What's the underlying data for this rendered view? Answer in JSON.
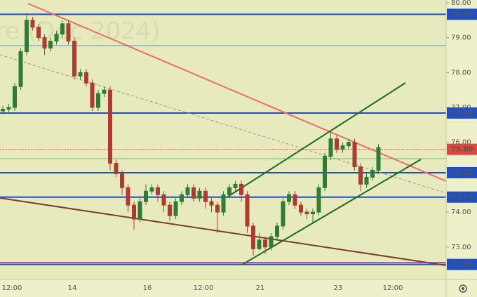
{
  "chart_data": {
    "type": "candlestick",
    "watermark": "re (Dec 2024)",
    "up_color": "#2e7d32",
    "down_color": "#b03a2e",
    "ylim": [
      72.07,
      80.08
    ],
    "yticks": [
      {
        "value": 73,
        "label": "73.00"
      },
      {
        "value": 74,
        "label": "74.00"
      },
      {
        "value": 76,
        "label": "76.00"
      },
      {
        "value": 77,
        "label": "77.00"
      },
      {
        "value": 78,
        "label": "78.00"
      },
      {
        "value": 79,
        "label": "79.00"
      },
      {
        "value": 80,
        "label": "80.00"
      }
    ],
    "x_labels": [
      "12:00",
      "14",
      "16",
      "12:00",
      "21",
      "23",
      "12:00"
    ],
    "levels": [
      {
        "value": 79.67,
        "label": "79.67",
        "color": "#1f4fc6"
      },
      {
        "value": 76.84,
        "label": "76.84",
        "color": "#1f4fc6"
      },
      {
        "value": 75.8,
        "label": "75.80",
        "color": "#e0463c"
      },
      {
        "value": 75.13,
        "label": "75.13",
        "color": "#1f4fc6"
      },
      {
        "value": 74.43,
        "label": "74.43",
        "color": "#1f4fc6"
      },
      {
        "value": 72.5,
        "label": "72.50",
        "color": "#1f4fc6"
      }
    ],
    "series": [
      {
        "open": [
          76.9,
          76.95,
          77.0,
          77.6,
          78.6,
          79.5,
          79.3,
          79.0,
          78.7,
          78.9,
          79.1,
          79.4,
          78.9,
          77.9,
          78.0,
          77.7,
          77.0,
          77.4,
          77.5,
          75.4,
          75.1,
          74.7,
          74.2,
          73.8,
          74.3,
          74.6,
          74.7,
          74.5,
          74.2,
          73.9,
          74.3,
          74.5,
          74.7,
          74.4,
          74.6,
          74.3,
          74.2,
          74.0,
          74.5,
          74.7,
          74.8,
          74.5,
          73.6,
          72.95,
          73.2,
          73.0,
          73.3,
          73.6,
          74.3,
          74.5,
          74.2,
          74.0,
          73.95,
          74.0,
          74.7,
          75.6,
          76.1,
          75.8,
          75.9,
          76.0,
          75.3,
          74.8,
          75.0,
          75.2
        ],
        "high": [
          77.05,
          77.1,
          77.7,
          78.7,
          79.7,
          79.6,
          79.4,
          79.1,
          79.0,
          79.2,
          79.5,
          79.5,
          79.0,
          78.1,
          78.1,
          77.8,
          77.5,
          77.6,
          77.6,
          75.5,
          75.2,
          74.8,
          74.3,
          74.4,
          74.8,
          74.8,
          74.8,
          74.6,
          74.3,
          74.4,
          74.6,
          74.8,
          74.8,
          74.7,
          74.7,
          74.4,
          74.3,
          74.6,
          74.8,
          74.9,
          74.9,
          74.6,
          73.7,
          73.4,
          73.3,
          73.4,
          73.7,
          74.4,
          74.6,
          74.6,
          74.3,
          74.1,
          74.1,
          74.8,
          75.7,
          76.3,
          76.2,
          76.0,
          76.1,
          76.1,
          75.4,
          75.1,
          75.3,
          75.95
        ],
        "low": [
          76.8,
          76.85,
          76.9,
          77.5,
          78.5,
          79.2,
          78.9,
          78.5,
          78.6,
          78.8,
          79.0,
          78.8,
          77.8,
          77.8,
          77.6,
          76.9,
          76.9,
          77.3,
          75.2,
          75.0,
          74.5,
          74.0,
          73.5,
          73.7,
          74.2,
          74.5,
          74.3,
          74.0,
          73.75,
          73.8,
          74.2,
          74.4,
          74.3,
          74.3,
          74.1,
          74.0,
          73.4,
          73.9,
          74.4,
          74.6,
          74.3,
          73.4,
          72.75,
          72.9,
          72.8,
          72.9,
          73.2,
          73.5,
          74.2,
          74.1,
          73.9,
          73.8,
          73.7,
          73.9,
          74.6,
          75.5,
          75.7,
          75.7,
          75.8,
          75.2,
          74.6,
          74.7,
          74.9,
          75.1
        ],
        "close": [
          76.95,
          77.0,
          77.6,
          78.6,
          79.5,
          79.3,
          79.0,
          78.7,
          78.9,
          79.1,
          79.4,
          78.9,
          77.9,
          78.0,
          77.7,
          77.0,
          77.4,
          77.5,
          75.4,
          75.1,
          74.7,
          74.2,
          73.8,
          74.3,
          74.6,
          74.7,
          74.5,
          74.2,
          73.9,
          74.3,
          74.5,
          74.7,
          74.4,
          74.6,
          74.3,
          74.2,
          74.0,
          74.5,
          74.7,
          74.8,
          74.5,
          73.6,
          72.95,
          73.2,
          73.0,
          73.3,
          73.6,
          74.3,
          74.5,
          74.2,
          74.0,
          73.95,
          74.0,
          74.7,
          75.6,
          76.1,
          75.8,
          75.9,
          76.0,
          75.3,
          74.8,
          75.0,
          75.2,
          75.85
        ]
      }
    ]
  }
}
